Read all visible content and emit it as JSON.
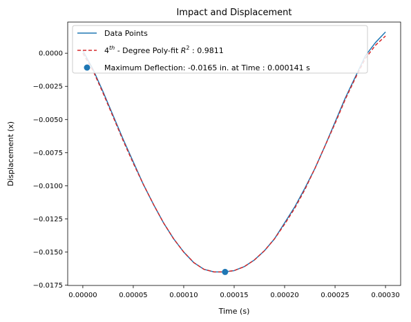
{
  "chart_data": {
    "type": "line",
    "title": "Impact and Displacement",
    "xlabel": "Time (s)",
    "ylabel": "Displacement (x)",
    "xlim": [
      -1.5e-05,
      0.000315
    ],
    "ylim": [
      -0.01752,
      0.00235
    ],
    "xticks": [
      0.0,
      5e-05,
      0.0001,
      0.00015,
      0.0002,
      0.00025,
      0.0003
    ],
    "xtick_labels": [
      "0.00000",
      "0.00005",
      "0.00010",
      "0.00015",
      "0.00020",
      "0.00025",
      "0.00030"
    ],
    "yticks": [
      0.0,
      -0.0025,
      -0.005,
      -0.0075,
      -0.01,
      -0.0125,
      -0.015,
      -0.0175
    ],
    "ytick_labels": [
      "0.0000",
      "−0.0025",
      "−0.0050",
      "−0.0075",
      "−0.0100",
      "−0.0125",
      "−0.0150",
      "−0.0175"
    ],
    "grid": false,
    "legend_position": "top-left",
    "series": [
      {
        "name": "Data Points",
        "style": "solid",
        "color": "#1f77b4",
        "x": [
          0.0,
          1e-05,
          2e-05,
          3e-05,
          4e-05,
          5e-05,
          6e-05,
          7e-05,
          8e-05,
          9e-05,
          0.0001,
          0.00011,
          0.00012,
          0.00013,
          0.00014,
          0.00015,
          0.00016,
          0.00017,
          0.00018,
          0.00019,
          0.0002,
          0.00021,
          0.00022,
          0.00023,
          0.00024,
          0.00025,
          0.00026,
          0.00027,
          0.00028,
          0.00029,
          0.0003
        ],
        "y": [
          0.0002,
          -0.0012,
          -0.0029,
          -0.0047,
          -0.0065,
          -0.0082,
          -0.0099,
          -0.0114,
          -0.0128,
          -0.014,
          -0.015,
          -0.0158,
          -0.0163,
          -0.0165,
          -0.0165,
          -0.0164,
          -0.0161,
          -0.0156,
          -0.0149,
          -0.014,
          -0.0128,
          -0.0116,
          -0.0102,
          -0.0087,
          -0.007,
          -0.0052,
          -0.0034,
          -0.0018,
          -0.0002,
          0.0008,
          0.0016
        ]
      },
      {
        "name_parts": [
          "4",
          "th",
          " - Degree Poly-fit ",
          "R",
          "2",
          " : 0.9811"
        ],
        "style": "dashed",
        "color": "#d62728",
        "x": [
          0.0,
          1e-05,
          2e-05,
          3e-05,
          4e-05,
          5e-05,
          6e-05,
          7e-05,
          8e-05,
          9e-05,
          0.0001,
          0.00011,
          0.00012,
          0.00013,
          0.00014,
          0.00015,
          0.00016,
          0.00017,
          0.00018,
          0.00019,
          0.0002,
          0.00021,
          0.00022,
          0.00023,
          0.00024,
          0.00025,
          0.00026,
          0.00027,
          0.00028,
          0.00029,
          0.0003
        ],
        "y": [
          0.0,
          -0.0013,
          -0.003,
          -0.0048,
          -0.0066,
          -0.0083,
          -0.0099,
          -0.0114,
          -0.0128,
          -0.014,
          -0.015,
          -0.0158,
          -0.0163,
          -0.0165,
          -0.0165,
          -0.0164,
          -0.0161,
          -0.0156,
          -0.0149,
          -0.014,
          -0.0129,
          -0.0117,
          -0.0103,
          -0.0087,
          -0.007,
          -0.0053,
          -0.0035,
          -0.0019,
          -0.0004,
          0.0006,
          0.0013
        ]
      },
      {
        "name": "Maximum Deflection: -0.0165 in. at Time : 0.000141 s",
        "style": "marker",
        "color": "#1f77b4",
        "x": [
          0.000141
        ],
        "y": [
          -0.0165
        ]
      }
    ]
  }
}
